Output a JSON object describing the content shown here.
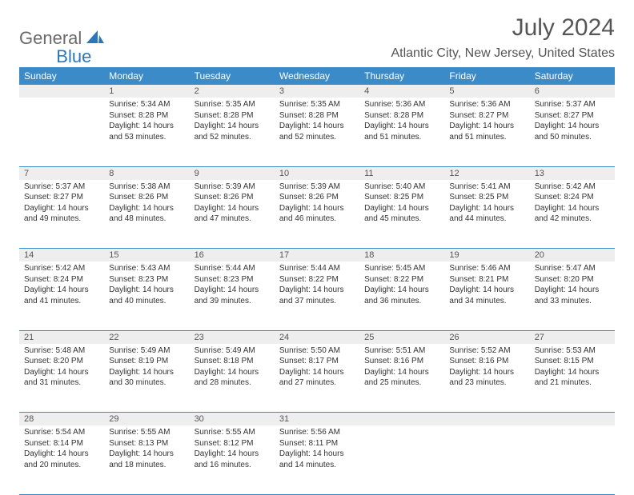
{
  "logo": {
    "part1": "General",
    "part2": "Blue"
  },
  "title": "July 2024",
  "location": "Atlantic City, New Jersey, United States",
  "colors": {
    "header_bg": "#3b8bc8",
    "header_text": "#ffffff",
    "daynum_bg": "#eeeeee",
    "rule": "#3b8bc8",
    "logo_gray": "#6a6a6a",
    "logo_blue": "#2a77bb"
  },
  "weekdays": [
    "Sunday",
    "Monday",
    "Tuesday",
    "Wednesday",
    "Thursday",
    "Friday",
    "Saturday"
  ],
  "weeks": [
    {
      "nums": [
        "",
        "1",
        "2",
        "3",
        "4",
        "5",
        "6"
      ],
      "cells": [
        null,
        {
          "sunrise": "Sunrise: 5:34 AM",
          "sunset": "Sunset: 8:28 PM",
          "day1": "Daylight: 14 hours",
          "day2": "and 53 minutes."
        },
        {
          "sunrise": "Sunrise: 5:35 AM",
          "sunset": "Sunset: 8:28 PM",
          "day1": "Daylight: 14 hours",
          "day2": "and 52 minutes."
        },
        {
          "sunrise": "Sunrise: 5:35 AM",
          "sunset": "Sunset: 8:28 PM",
          "day1": "Daylight: 14 hours",
          "day2": "and 52 minutes."
        },
        {
          "sunrise": "Sunrise: 5:36 AM",
          "sunset": "Sunset: 8:28 PM",
          "day1": "Daylight: 14 hours",
          "day2": "and 51 minutes."
        },
        {
          "sunrise": "Sunrise: 5:36 AM",
          "sunset": "Sunset: 8:27 PM",
          "day1": "Daylight: 14 hours",
          "day2": "and 51 minutes."
        },
        {
          "sunrise": "Sunrise: 5:37 AM",
          "sunset": "Sunset: 8:27 PM",
          "day1": "Daylight: 14 hours",
          "day2": "and 50 minutes."
        }
      ]
    },
    {
      "nums": [
        "7",
        "8",
        "9",
        "10",
        "11",
        "12",
        "13"
      ],
      "cells": [
        {
          "sunrise": "Sunrise: 5:37 AM",
          "sunset": "Sunset: 8:27 PM",
          "day1": "Daylight: 14 hours",
          "day2": "and 49 minutes."
        },
        {
          "sunrise": "Sunrise: 5:38 AM",
          "sunset": "Sunset: 8:26 PM",
          "day1": "Daylight: 14 hours",
          "day2": "and 48 minutes."
        },
        {
          "sunrise": "Sunrise: 5:39 AM",
          "sunset": "Sunset: 8:26 PM",
          "day1": "Daylight: 14 hours",
          "day2": "and 47 minutes."
        },
        {
          "sunrise": "Sunrise: 5:39 AM",
          "sunset": "Sunset: 8:26 PM",
          "day1": "Daylight: 14 hours",
          "day2": "and 46 minutes."
        },
        {
          "sunrise": "Sunrise: 5:40 AM",
          "sunset": "Sunset: 8:25 PM",
          "day1": "Daylight: 14 hours",
          "day2": "and 45 minutes."
        },
        {
          "sunrise": "Sunrise: 5:41 AM",
          "sunset": "Sunset: 8:25 PM",
          "day1": "Daylight: 14 hours",
          "day2": "and 44 minutes."
        },
        {
          "sunrise": "Sunrise: 5:42 AM",
          "sunset": "Sunset: 8:24 PM",
          "day1": "Daylight: 14 hours",
          "day2": "and 42 minutes."
        }
      ]
    },
    {
      "nums": [
        "14",
        "15",
        "16",
        "17",
        "18",
        "19",
        "20"
      ],
      "cells": [
        {
          "sunrise": "Sunrise: 5:42 AM",
          "sunset": "Sunset: 8:24 PM",
          "day1": "Daylight: 14 hours",
          "day2": "and 41 minutes."
        },
        {
          "sunrise": "Sunrise: 5:43 AM",
          "sunset": "Sunset: 8:23 PM",
          "day1": "Daylight: 14 hours",
          "day2": "and 40 minutes."
        },
        {
          "sunrise": "Sunrise: 5:44 AM",
          "sunset": "Sunset: 8:23 PM",
          "day1": "Daylight: 14 hours",
          "day2": "and 39 minutes."
        },
        {
          "sunrise": "Sunrise: 5:44 AM",
          "sunset": "Sunset: 8:22 PM",
          "day1": "Daylight: 14 hours",
          "day2": "and 37 minutes."
        },
        {
          "sunrise": "Sunrise: 5:45 AM",
          "sunset": "Sunset: 8:22 PM",
          "day1": "Daylight: 14 hours",
          "day2": "and 36 minutes."
        },
        {
          "sunrise": "Sunrise: 5:46 AM",
          "sunset": "Sunset: 8:21 PM",
          "day1": "Daylight: 14 hours",
          "day2": "and 34 minutes."
        },
        {
          "sunrise": "Sunrise: 5:47 AM",
          "sunset": "Sunset: 8:20 PM",
          "day1": "Daylight: 14 hours",
          "day2": "and 33 minutes."
        }
      ]
    },
    {
      "nums": [
        "21",
        "22",
        "23",
        "24",
        "25",
        "26",
        "27"
      ],
      "cells": [
        {
          "sunrise": "Sunrise: 5:48 AM",
          "sunset": "Sunset: 8:20 PM",
          "day1": "Daylight: 14 hours",
          "day2": "and 31 minutes."
        },
        {
          "sunrise": "Sunrise: 5:49 AM",
          "sunset": "Sunset: 8:19 PM",
          "day1": "Daylight: 14 hours",
          "day2": "and 30 minutes."
        },
        {
          "sunrise": "Sunrise: 5:49 AM",
          "sunset": "Sunset: 8:18 PM",
          "day1": "Daylight: 14 hours",
          "day2": "and 28 minutes."
        },
        {
          "sunrise": "Sunrise: 5:50 AM",
          "sunset": "Sunset: 8:17 PM",
          "day1": "Daylight: 14 hours",
          "day2": "and 27 minutes."
        },
        {
          "sunrise": "Sunrise: 5:51 AM",
          "sunset": "Sunset: 8:16 PM",
          "day1": "Daylight: 14 hours",
          "day2": "and 25 minutes."
        },
        {
          "sunrise": "Sunrise: 5:52 AM",
          "sunset": "Sunset: 8:16 PM",
          "day1": "Daylight: 14 hours",
          "day2": "and 23 minutes."
        },
        {
          "sunrise": "Sunrise: 5:53 AM",
          "sunset": "Sunset: 8:15 PM",
          "day1": "Daylight: 14 hours",
          "day2": "and 21 minutes."
        }
      ]
    },
    {
      "nums": [
        "28",
        "29",
        "30",
        "31",
        "",
        "",
        ""
      ],
      "cells": [
        {
          "sunrise": "Sunrise: 5:54 AM",
          "sunset": "Sunset: 8:14 PM",
          "day1": "Daylight: 14 hours",
          "day2": "and 20 minutes."
        },
        {
          "sunrise": "Sunrise: 5:55 AM",
          "sunset": "Sunset: 8:13 PM",
          "day1": "Daylight: 14 hours",
          "day2": "and 18 minutes."
        },
        {
          "sunrise": "Sunrise: 5:55 AM",
          "sunset": "Sunset: 8:12 PM",
          "day1": "Daylight: 14 hours",
          "day2": "and 16 minutes."
        },
        {
          "sunrise": "Sunrise: 5:56 AM",
          "sunset": "Sunset: 8:11 PM",
          "day1": "Daylight: 14 hours",
          "day2": "and 14 minutes."
        },
        null,
        null,
        null
      ]
    }
  ]
}
